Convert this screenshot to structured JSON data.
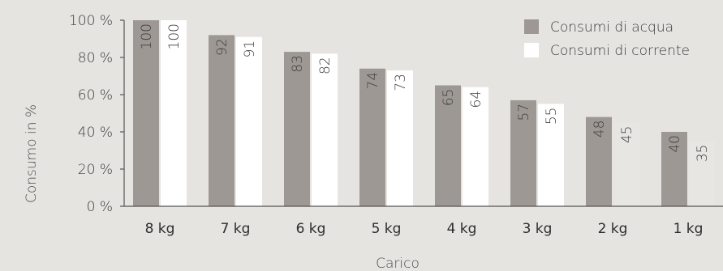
{
  "chart_data": {
    "type": "bar",
    "categories": [
      "8 kg",
      "7 kg",
      "6 kg",
      "5 kg",
      "4 kg",
      "3 kg",
      "2 kg",
      "1 kg"
    ],
    "series": [
      {
        "name": "Consumi di acqua",
        "values": [
          100,
          92,
          83,
          74,
          65,
          57,
          48,
          40
        ],
        "color": "#9d9893"
      },
      {
        "name": "Consumi di corrente",
        "values": [
          100,
          91,
          82,
          73,
          64,
          55,
          45,
          35
        ],
        "color": "#ffffff"
      }
    ],
    "xlabel": "Carico",
    "ylabel": "Consumo in %",
    "ylim": [
      0,
      100
    ],
    "yticks": [
      "0 %",
      "20 %",
      "40 %",
      "60 %",
      "80 %",
      "100 %"
    ],
    "ytick_values": [
      0,
      20,
      40,
      60,
      80,
      100
    ],
    "legend_position": "top-right",
    "grid": false,
    "value_label_color_dark": "#3c3c3c",
    "axis_color": "#555555"
  }
}
